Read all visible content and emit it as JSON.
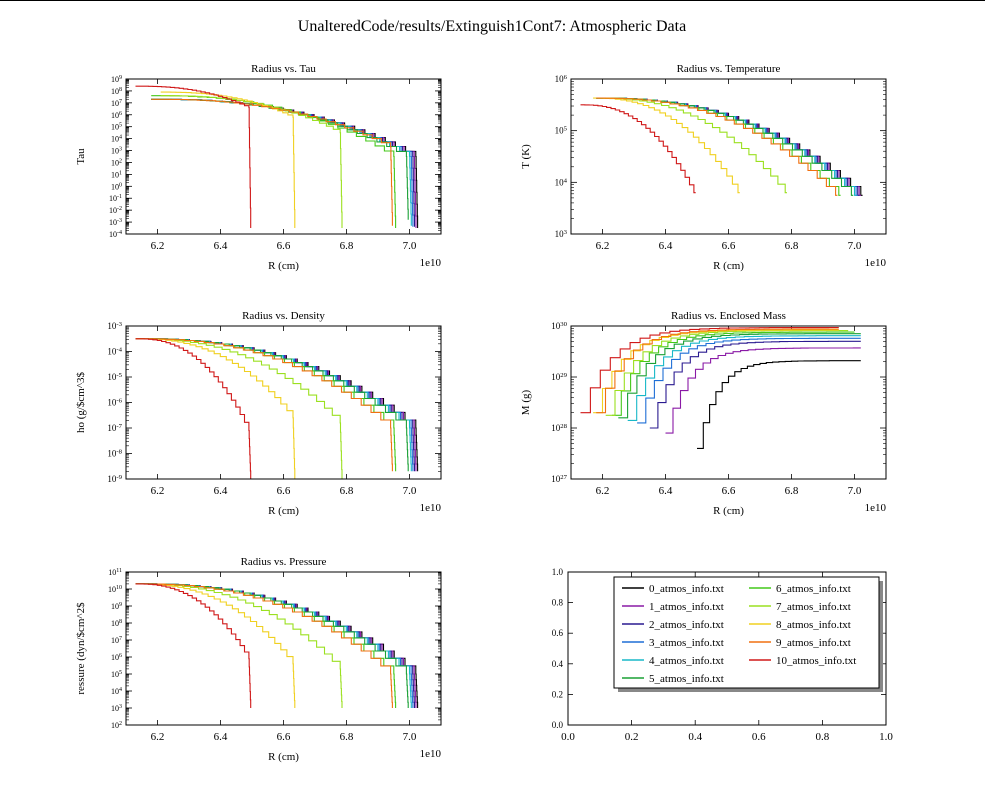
{
  "figure": {
    "suptitle": "UnalteredCode/results/Extinguish1Cont7: Atmospheric Data",
    "files": [
      "0_atmos_info.txt",
      "1_atmos_info.txt",
      "2_atmos_info.txt",
      "3_atmos_info.txt",
      "4_atmos_info.txt",
      "5_atmos_info.txt",
      "6_atmos_info.txt",
      "7_atmos_info.txt",
      "8_atmos_info.txt",
      "9_atmos_info.txt",
      "10_atmos_info.txt"
    ],
    "colors": [
      "#000000",
      "#8a1aa6",
      "#2a1a90",
      "#1f6fd6",
      "#18b8c8",
      "#1aa035",
      "#44c81a",
      "#9be020",
      "#f0d020",
      "#f07010",
      "#d01818"
    ]
  },
  "chart_data": [
    {
      "id": "tau",
      "type": "line",
      "title": "Radius vs. Tau",
      "xlabel": "R (cm)",
      "ylabel": "Tau",
      "x_offset": "1e10",
      "xlim": [
        6.1,
        7.1
      ],
      "xticks": [
        "6.2",
        "6.4",
        "6.6",
        "6.8",
        "7.0"
      ],
      "yscale": "log",
      "ylim_exp": [
        -4,
        9
      ],
      "yticks": [
        "10^9",
        "10^8",
        "10^7",
        "10^6",
        "10^5",
        "10^4",
        "10^3",
        "10^2",
        "10^1",
        "10^0",
        "10^-1",
        "10^-2",
        "10^-3",
        "10^-4"
      ],
      "series": [
        {
          "rmin": 6.18,
          "rmax": 7.02,
          "y0": 7.3,
          "y1": 2.5,
          "ymin": -3.5,
          "stepped": true
        },
        {
          "rmin": 6.18,
          "rmax": 7.015,
          "y0": 7.3,
          "y1": 2.5,
          "ymin": -3.5,
          "stepped": true
        },
        {
          "rmin": 6.18,
          "rmax": 7.01,
          "y0": 7.3,
          "y1": 2.5,
          "ymin": -3.4,
          "stepped": true
        },
        {
          "rmin": 6.18,
          "rmax": 7.005,
          "y0": 7.3,
          "y1": 2.5,
          "ymin": -3.4,
          "stepped": true
        },
        {
          "rmin": 6.18,
          "rmax": 7.0,
          "y0": 7.3,
          "y1": 2.5,
          "ymin": -3.3,
          "stepped": true
        },
        {
          "rmin": 6.18,
          "rmax": 6.99,
          "y0": 7.3,
          "y1": 2.5,
          "ymin": -2.8,
          "stepped": true
        },
        {
          "rmin": 6.18,
          "rmax": 6.95,
          "y0": 7.6,
          "y1": 2.5,
          "ymin": -3.5,
          "stepped": true
        },
        {
          "rmin": 6.21,
          "rmax": 6.78,
          "y0": 7.6,
          "y1": 4.5,
          "ymin": -3.5,
          "stepped": true
        },
        {
          "rmin": 6.21,
          "rmax": 6.63,
          "y0": 7.9,
          "y1": 5.8,
          "ymin": -3.5,
          "stepped": true
        },
        {
          "rmin": 6.18,
          "rmax": 6.94,
          "y0": 7.3,
          "y1": 3.3,
          "ymin": -3.3,
          "stepped": true
        },
        {
          "rmin": 6.13,
          "rmax": 6.49,
          "y0": 8.4,
          "y1": 6.6,
          "ymin": -3.5,
          "stepped": true
        }
      ]
    },
    {
      "id": "temperature",
      "type": "line",
      "title": "Radius vs. Temperature",
      "xlabel": "R (cm)",
      "ylabel": "T (K)",
      "x_offset": "1e10",
      "xlim": [
        6.1,
        7.1
      ],
      "xticks": [
        "6.2",
        "6.4",
        "6.6",
        "6.8",
        "7.0"
      ],
      "yscale": "log",
      "ylim_exp": [
        3,
        6
      ],
      "yticks": [
        "10^6",
        "10^5",
        "10^4",
        "10^3"
      ],
      "series": [
        {
          "rmin": 6.18,
          "rmax": 7.02,
          "y0": 5.63,
          "y1": 3.75,
          "ymin": 3.75,
          "stepped": true
        },
        {
          "rmin": 6.18,
          "rmax": 7.015,
          "y0": 5.63,
          "y1": 3.75,
          "ymin": 3.75,
          "stepped": true
        },
        {
          "rmin": 6.18,
          "rmax": 7.01,
          "y0": 5.63,
          "y1": 3.75,
          "ymin": 3.75,
          "stepped": true
        },
        {
          "rmin": 6.18,
          "rmax": 7.005,
          "y0": 5.63,
          "y1": 3.75,
          "ymin": 3.75,
          "stepped": true
        },
        {
          "rmin": 6.18,
          "rmax": 7.0,
          "y0": 5.63,
          "y1": 3.75,
          "ymin": 3.75,
          "stepped": true
        },
        {
          "rmin": 6.18,
          "rmax": 6.99,
          "y0": 5.63,
          "y1": 3.75,
          "ymin": 3.75,
          "stepped": true
        },
        {
          "rmin": 6.18,
          "rmax": 6.95,
          "y0": 5.63,
          "y1": 3.75,
          "ymin": 3.75,
          "stepped": true
        },
        {
          "rmin": 6.18,
          "rmax": 6.78,
          "y0": 5.63,
          "y1": 3.8,
          "ymin": 3.8,
          "stepped": true
        },
        {
          "rmin": 6.17,
          "rmax": 6.63,
          "y0": 5.63,
          "y1": 3.8,
          "ymin": 3.8,
          "stepped": true
        },
        {
          "rmin": 6.18,
          "rmax": 6.94,
          "y0": 5.63,
          "y1": 3.75,
          "ymin": 3.75,
          "stepped": true
        },
        {
          "rmin": 6.13,
          "rmax": 6.49,
          "y0": 5.5,
          "y1": 3.8,
          "ymin": 3.8,
          "stepped": true
        }
      ]
    },
    {
      "id": "density",
      "type": "line",
      "title": "Radius vs. Density",
      "xlabel": "R (cm)",
      "ylabel": "ho (g/$cm^3$",
      "x_offset": "1e10",
      "xlim": [
        6.1,
        7.1
      ],
      "xticks": [
        "6.2",
        "6.4",
        "6.6",
        "6.8",
        "7.0"
      ],
      "yscale": "log",
      "ylim_exp": [
        -9,
        -3
      ],
      "yticks": [
        "10^-3",
        "10^-4",
        "10^-5",
        "10^-6",
        "10^-7",
        "10^-8",
        "10^-9"
      ],
      "series": [
        {
          "rmin": 6.13,
          "rmax": 7.02,
          "y0": -3.5,
          "y1": -7.0,
          "ymin": -8.7,
          "stepped": true
        },
        {
          "rmin": 6.13,
          "rmax": 7.015,
          "y0": -3.5,
          "y1": -7.0,
          "ymin": -8.7,
          "stepped": true
        },
        {
          "rmin": 6.13,
          "rmax": 7.01,
          "y0": -3.5,
          "y1": -7.0,
          "ymin": -8.7,
          "stepped": true
        },
        {
          "rmin": 6.13,
          "rmax": 7.005,
          "y0": -3.5,
          "y1": -7.0,
          "ymin": -8.7,
          "stepped": true
        },
        {
          "rmin": 6.13,
          "rmax": 7.0,
          "y0": -3.5,
          "y1": -7.0,
          "ymin": -8.7,
          "stepped": true
        },
        {
          "rmin": 6.13,
          "rmax": 6.99,
          "y0": -3.5,
          "y1": -7.0,
          "ymin": -8.7,
          "stepped": true
        },
        {
          "rmin": 6.13,
          "rmax": 6.95,
          "y0": -3.5,
          "y1": -7.0,
          "ymin": -8.7,
          "stepped": true
        },
        {
          "rmin": 6.13,
          "rmax": 6.78,
          "y0": -3.5,
          "y1": -6.8,
          "ymin": -9.0,
          "stepped": true
        },
        {
          "rmin": 6.13,
          "rmax": 6.63,
          "y0": -3.5,
          "y1": -6.6,
          "ymin": -9.0,
          "stepped": true
        },
        {
          "rmin": 6.13,
          "rmax": 6.94,
          "y0": -3.5,
          "y1": -7.0,
          "ymin": -8.7,
          "stepped": true
        },
        {
          "rmin": 6.13,
          "rmax": 6.49,
          "y0": -3.5,
          "y1": -7.1,
          "ymin": -9.0,
          "stepped": true
        }
      ]
    },
    {
      "id": "mass",
      "type": "line",
      "title": "Radius vs. Enclosed Mass",
      "xlabel": "R (cm)",
      "ylabel": "M (g)",
      "x_offset": "1e10",
      "xlim": [
        6.1,
        7.1
      ],
      "xticks": [
        "6.2",
        "6.4",
        "6.6",
        "6.8",
        "7.0"
      ],
      "yscale": "log",
      "ylim_exp": [
        27,
        30
      ],
      "yticks": [
        "10^30",
        "10^29",
        "10^28",
        "10^27"
      ],
      "series": [
        {
          "rmin": 6.5,
          "rmax": 7.02,
          "yStart": 27.6,
          "yEnd": 29.32,
          "stepped": true
        },
        {
          "rmin": 6.4,
          "rmax": 7.02,
          "yStart": 27.9,
          "yEnd": 29.57,
          "stepped": true
        },
        {
          "rmin": 6.35,
          "rmax": 7.02,
          "yStart": 28.0,
          "yEnd": 29.7,
          "stepped": true
        },
        {
          "rmin": 6.31,
          "rmax": 7.02,
          "yStart": 28.1,
          "yEnd": 29.76,
          "stepped": true
        },
        {
          "rmin": 6.28,
          "rmax": 7.02,
          "yStart": 28.15,
          "yEnd": 29.81,
          "stepped": true
        },
        {
          "rmin": 6.25,
          "rmax": 7.02,
          "yStart": 28.2,
          "yEnd": 29.85,
          "stepped": true
        },
        {
          "rmin": 6.23,
          "rmax": 7.0,
          "yStart": 28.25,
          "yEnd": 29.88,
          "stepped": true
        },
        {
          "rmin": 6.21,
          "rmax": 6.98,
          "yStart": 28.25,
          "yEnd": 29.91,
          "stepped": true
        },
        {
          "rmin": 6.17,
          "rmax": 6.95,
          "yStart": 28.3,
          "yEnd": 29.92,
          "stepped": true
        },
        {
          "rmin": 6.18,
          "rmax": 6.95,
          "yStart": 28.3,
          "yEnd": 29.94,
          "stepped": true
        },
        {
          "rmin": 6.13,
          "rmax": 6.95,
          "yStart": 28.3,
          "yEnd": 29.97,
          "stepped": true
        }
      ]
    },
    {
      "id": "pressure",
      "type": "line",
      "title": "Radius vs. Pressure",
      "xlabel": "R (cm)",
      "ylabel": "ressure (dyn/$cm^2$",
      "x_offset": "1e10",
      "xlim": [
        6.1,
        7.1
      ],
      "xticks": [
        "6.2",
        "6.4",
        "6.6",
        "6.8",
        "7.0"
      ],
      "yscale": "log",
      "ylim_exp": [
        2,
        11
      ],
      "yticks": [
        "10^11",
        "10^10",
        "10^9",
        "10^8",
        "10^7",
        "10^6",
        "10^5",
        "10^4",
        "10^3",
        "10^2"
      ],
      "series": [
        {
          "rmin": 6.13,
          "rmax": 7.02,
          "y0": 10.3,
          "y1": 5.0,
          "ymin": 3.0,
          "stepped": true
        },
        {
          "rmin": 6.13,
          "rmax": 7.015,
          "y0": 10.3,
          "y1": 5.0,
          "ymin": 3.0,
          "stepped": true
        },
        {
          "rmin": 6.13,
          "rmax": 7.01,
          "y0": 10.3,
          "y1": 5.0,
          "ymin": 3.0,
          "stepped": true
        },
        {
          "rmin": 6.13,
          "rmax": 7.005,
          "y0": 10.3,
          "y1": 5.0,
          "ymin": 3.0,
          "stepped": true
        },
        {
          "rmin": 6.13,
          "rmax": 7.0,
          "y0": 10.3,
          "y1": 5.0,
          "ymin": 3.0,
          "stepped": true
        },
        {
          "rmin": 6.13,
          "rmax": 6.99,
          "y0": 10.3,
          "y1": 5.0,
          "ymin": 3.0,
          "stepped": true
        },
        {
          "rmin": 6.13,
          "rmax": 6.95,
          "y0": 10.3,
          "y1": 5.0,
          "ymin": 3.0,
          "stepped": true
        },
        {
          "rmin": 6.13,
          "rmax": 6.78,
          "y0": 10.3,
          "y1": 5.3,
          "ymin": 3.0,
          "stepped": true
        },
        {
          "rmin": 6.13,
          "rmax": 6.63,
          "y0": 10.3,
          "y1": 5.6,
          "ymin": 3.0,
          "stepped": true
        },
        {
          "rmin": 6.13,
          "rmax": 6.94,
          "y0": 10.3,
          "y1": 5.0,
          "ymin": 3.0,
          "stepped": true
        },
        {
          "rmin": 6.13,
          "rmax": 6.49,
          "y0": 10.3,
          "y1": 5.9,
          "ymin": 3.0,
          "stepped": true
        }
      ]
    },
    {
      "id": "legend",
      "type": "line",
      "title": "",
      "xlim": [
        0.0,
        1.0
      ],
      "ylim": [
        0.0,
        1.0
      ],
      "xticks": [
        "0.0",
        "0.2",
        "0.4",
        "0.6",
        "0.8",
        "1.0"
      ],
      "yticks": [
        "1.0",
        "0.8",
        "0.6",
        "0.4",
        "0.2",
        "0.0"
      ],
      "legend": "upper-right",
      "series": []
    }
  ]
}
